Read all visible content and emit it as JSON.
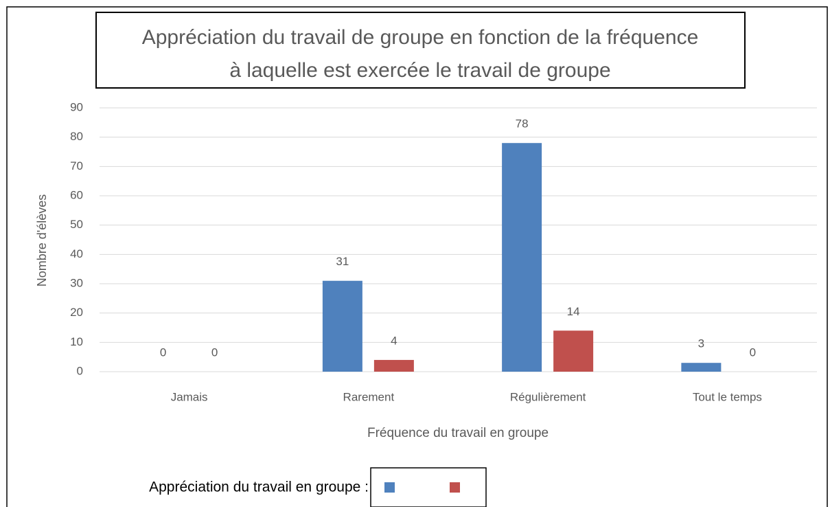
{
  "chart_data": {
    "type": "bar",
    "title": [
      "Appréciation du travail de groupe en fonction de la fréquence",
      "à laquelle est exercée le travail de groupe"
    ],
    "x_label": "Fréquence du travail en groupe",
    "y_label": "Nombre d'élèves",
    "legend_title": "Appréciation du travail en groupe :",
    "categories": [
      "Jamais",
      "Rarement",
      "Régulièrement",
      "Tout le temps"
    ],
    "series": [
      {
        "color": "#4f81bd",
        "values": [
          0,
          31,
          78,
          3
        ]
      },
      {
        "color": "#c0504d",
        "values": [
          0,
          4,
          14,
          0
        ]
      }
    ],
    "ylim": [
      0,
      90
    ],
    "yticks": [
      0,
      10,
      20,
      30,
      40,
      50,
      60,
      70,
      80,
      90
    ],
    "grid": true
  }
}
